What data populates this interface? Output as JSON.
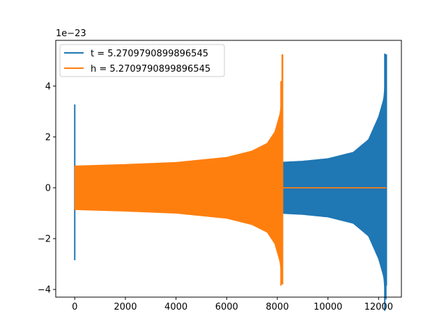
{
  "chart_data": {
    "type": "line",
    "title": "",
    "xlabel": "",
    "ylabel": "",
    "y_offset_label": "1e−23",
    "y_scale": 1e-23,
    "xlim": [
      -750,
      12900
    ],
    "ylim": [
      -4.3e-23,
      5.8e-23
    ],
    "x_ticks": [
      0,
      2000,
      4000,
      6000,
      8000,
      10000,
      12000
    ],
    "x_tick_labels": [
      "0",
      "2000",
      "4000",
      "6000",
      "8000",
      "10000",
      "12000"
    ],
    "y_ticks": [
      -4e-23,
      -2e-23,
      0,
      2e-23,
      4e-23
    ],
    "y_tick_labels": [
      "−4",
      "−2",
      "0",
      "2",
      "4"
    ],
    "grid": false,
    "legend_position": "top-left",
    "series": [
      {
        "name": "t = 5.2709790899896545",
        "color": "#1f77b4",
        "shape": "chirp",
        "x_start": 0,
        "x_end": 12300,
        "spike_at_start": {
          "max": 3.28e-23,
          "min": -2.85e-23
        },
        "envelope": [
          [
            0,
            8.5e-24
          ],
          [
            2000,
            8.8e-24
          ],
          [
            4000,
            9e-24
          ],
          [
            6000,
            9.5e-24
          ],
          [
            8000,
            1e-23
          ],
          [
            9000,
            1.05e-23
          ],
          [
            10000,
            1.15e-23
          ],
          [
            11000,
            1.4e-23
          ],
          [
            11600,
            1.9e-23
          ],
          [
            12000,
            2.8e-23
          ],
          [
            12200,
            3.5e-23
          ],
          [
            12280,
            4.4e-23
          ]
        ],
        "peak_max": 5.25e-23,
        "peak_min": -3.85e-23
      },
      {
        "name": "h = 5.2709790899896545",
        "color": "#ff7f0e",
        "shape": "chirp",
        "x_start": 0,
        "x_end": 8200,
        "tail_flat_until": 12300,
        "envelope": [
          [
            0,
            8.6e-24
          ],
          [
            2000,
            9.2e-24
          ],
          [
            4000,
            1e-23
          ],
          [
            6000,
            1.2e-23
          ],
          [
            7000,
            1.45e-23
          ],
          [
            7600,
            1.75e-23
          ],
          [
            7900,
            2.2e-23
          ],
          [
            8100,
            2.9e-23
          ],
          [
            8180,
            3.5e-23
          ]
        ],
        "peak_max": 5.25e-23,
        "peak_min": -3.8e-23
      }
    ]
  }
}
